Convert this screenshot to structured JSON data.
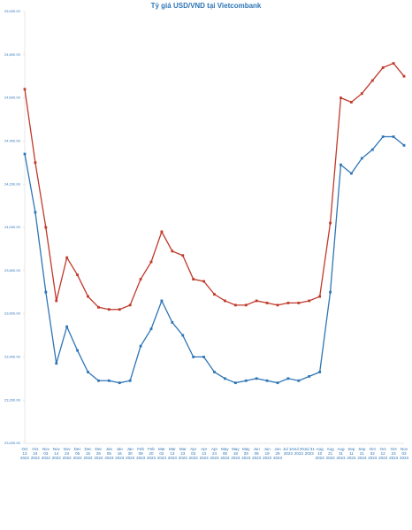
{
  "chart_data": {
    "type": "line",
    "title": "Tỷ giá USD/VND tại Vietcombank",
    "categories": [
      "Oct 13 2022",
      "Oct 24 2022",
      "Nov 03 2022",
      "Nov 14 2022",
      "Nov 24 2022",
      "Dec 05 2022",
      "Dec 15 2022",
      "Dec 26 2022",
      "Jan 05 2023",
      "Jan 16 2023",
      "Jan 30 2023",
      "Feb 09 2023",
      "Feb 20 2023",
      "Mar 02 2023",
      "Mar 13 2023",
      "Mar 23 2023",
      "Apr 03 2023",
      "Apr 13 2023",
      "Apr 24 2023",
      "May 08 2023",
      "May 18 2023",
      "May 29 2023",
      "Jun 08 2023",
      "Jun 19 2023",
      "Jun 29 2023",
      "Jul 10 2023",
      "Jul 20 2023",
      "Jul 31 2023",
      "Aug 10 2023",
      "Aug 21 2023",
      "Aug 31 2023",
      "Sep 11 2023",
      "Sep 21 2023",
      "Oct 02 2023",
      "Oct 12 2023",
      "Oct 23 2023",
      "Nov 03 2023"
    ],
    "series": [
      {
        "color": "#c0392b",
        "values": [
          24640,
          24300,
          24000,
          23660,
          23860,
          23780,
          23680,
          23630,
          23620,
          23620,
          23640,
          23760,
          23840,
          23980,
          23890,
          23870,
          23760,
          23750,
          23690,
          23660,
          23640,
          23640,
          23660,
          23650,
          23640,
          23650,
          23650,
          23660,
          23680,
          24020,
          24600,
          24580,
          24620,
          24680,
          24740,
          24760,
          24700
        ]
      },
      {
        "color": "#2e75b6",
        "values": [
          24340,
          24070,
          23700,
          23370,
          23540,
          23430,
          23330,
          23290,
          23290,
          23280,
          23290,
          23450,
          23530,
          23660,
          23560,
          23500,
          23400,
          23400,
          23330,
          23300,
          23280,
          23290,
          23300,
          23290,
          23280,
          23300,
          23290,
          23310,
          23330,
          23700,
          24290,
          24250,
          24320,
          24360,
          24420,
          24420,
          24380
        ]
      }
    ],
    "ylim": [
      23000,
      25000
    ],
    "yticks": [
      {
        "value": 23000,
        "label": "23,000.00"
      },
      {
        "value": 23200,
        "label": "23,200.00"
      },
      {
        "value": 23400,
        "label": "23,400.00"
      },
      {
        "value": 23600,
        "label": "23,600.00"
      },
      {
        "value": 23800,
        "label": "23,800.00"
      },
      {
        "value": 24000,
        "label": "24,000.00"
      },
      {
        "value": 24200,
        "label": "24,200.00"
      },
      {
        "value": 24400,
        "label": "24,400.00"
      },
      {
        "value": 24600,
        "label": "24,600.00"
      },
      {
        "value": 24800,
        "label": "24,800.00"
      },
      {
        "value": 25000,
        "label": "25,000.00"
      }
    ],
    "grid": false
  }
}
